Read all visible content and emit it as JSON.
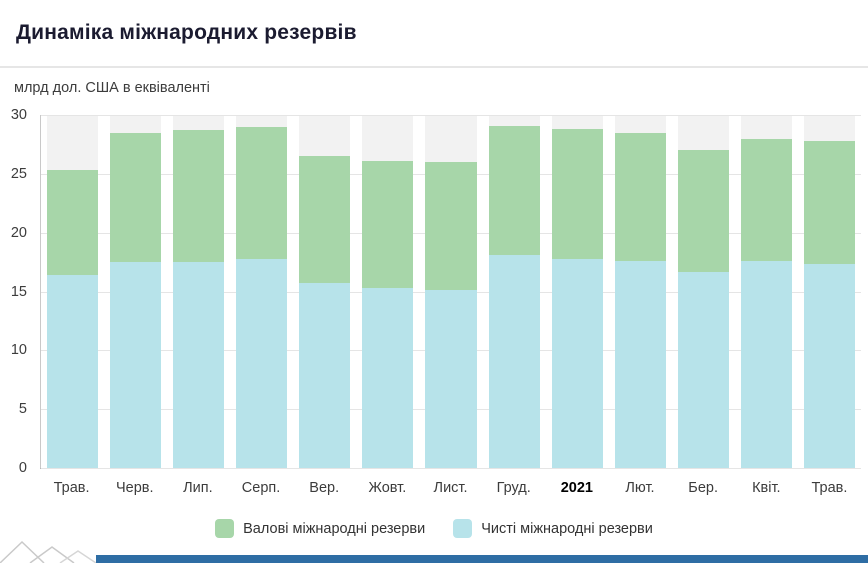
{
  "page": {
    "title": "Динаміка міжнародних резервів",
    "subtitle": "млрд дол. США в еквіваленті"
  },
  "colors": {
    "gross_green": "#a7d6a9",
    "net_blue": "#b7e3ea",
    "footer_blue": "#2e6da4",
    "column_band": "#f2f2f2"
  },
  "chart_data": {
    "type": "bar",
    "title": "Динаміка міжнародних резервів",
    "ylabel": "млрд дол. США в еквіваленті",
    "xlabel": "",
    "ylim": [
      0,
      30
    ],
    "y_ticks": [
      0,
      5,
      10,
      15,
      20,
      25,
      30
    ],
    "grid": true,
    "legend_position": "bottom",
    "categories": [
      "Трав.",
      "Черв.",
      "Лип.",
      "Серп.",
      "Вер.",
      "Жовт.",
      "Лист.",
      "Груд.",
      "2021",
      "Лют.",
      "Бер.",
      "Квіт.",
      "Трав."
    ],
    "bold_category_index": 8,
    "series": [
      {
        "name": "Валові міжнародні резерви",
        "color": "#a7d6a9",
        "values": [
          25.3,
          28.5,
          28.7,
          29.0,
          26.5,
          26.1,
          26.0,
          29.1,
          28.8,
          28.5,
          27.0,
          28.0,
          27.8
        ]
      },
      {
        "name": "Чисті міжнародні резерви",
        "color": "#b7e3ea",
        "values": [
          16.4,
          17.5,
          17.5,
          17.8,
          15.7,
          15.3,
          15.1,
          18.1,
          17.8,
          17.6,
          16.7,
          17.6,
          17.3
        ]
      }
    ]
  }
}
